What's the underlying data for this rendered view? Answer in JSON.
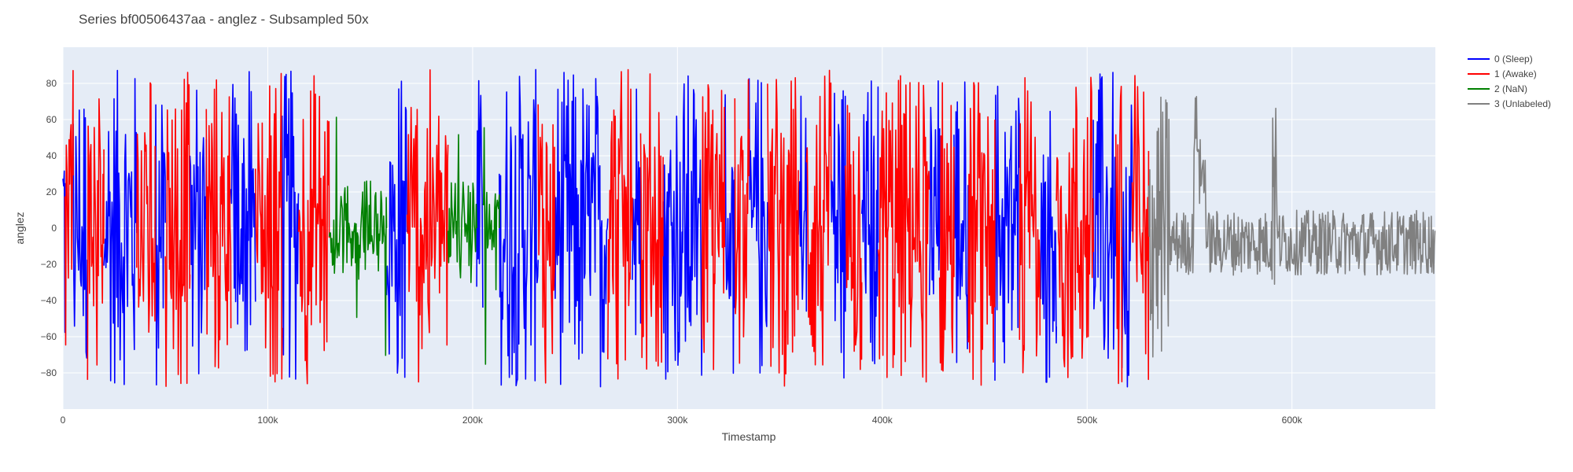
{
  "chart_data": {
    "type": "line",
    "title": "Series bf00506437aa - anglez - Subsampled 50x",
    "xlabel": "Timestamp",
    "ylabel": "anglez",
    "xlim": [
      0,
      670000
    ],
    "ylim": [
      -100,
      100
    ],
    "x_ticks": [
      {
        "value": 0,
        "label": "0"
      },
      {
        "value": 100000,
        "label": "100k"
      },
      {
        "value": 200000,
        "label": "200k"
      },
      {
        "value": 300000,
        "label": "300k"
      },
      {
        "value": 400000,
        "label": "400k"
      },
      {
        "value": 500000,
        "label": "500k"
      },
      {
        "value": 600000,
        "label": "600k"
      }
    ],
    "y_ticks": [
      {
        "value": 80,
        "label": "80"
      },
      {
        "value": 60,
        "label": "60"
      },
      {
        "value": 40,
        "label": "40"
      },
      {
        "value": 20,
        "label": "20"
      },
      {
        "value": 0,
        "label": "0"
      },
      {
        "value": -20,
        "label": "−20"
      },
      {
        "value": -40,
        "label": "−40"
      },
      {
        "value": -60,
        "label": "−60"
      },
      {
        "value": -80,
        "label": "−80"
      }
    ],
    "grid": true,
    "legend_position": "top-right",
    "plot_background": "#E5ECF6",
    "series": [
      {
        "name": "0 (Sleep)",
        "color": "#0000FF",
        "segments": [
          [
            0,
            1000
          ],
          [
            5000,
            12000
          ],
          [
            20000,
            36000
          ],
          [
            45000,
            50000
          ],
          [
            62000,
            70000
          ],
          [
            82000,
            94000
          ],
          [
            107000,
            115000
          ],
          [
            158000,
            168000
          ],
          [
            202000,
            205000
          ],
          [
            213000,
            232000
          ],
          [
            240000,
            266000
          ],
          [
            278000,
            282000
          ],
          [
            293000,
            312000
          ],
          [
            323000,
            328000
          ],
          [
            335000,
            344000
          ],
          [
            359000,
            363000
          ],
          [
            375000,
            382000
          ],
          [
            390000,
            398000
          ],
          [
            423000,
            428000
          ],
          [
            435000,
            442000
          ],
          [
            455000,
            467000
          ],
          [
            477000,
            485000
          ],
          [
            503000,
            514000
          ],
          [
            517000,
            522000
          ]
        ]
      },
      {
        "name": "1 (Awake)",
        "color": "#FF0000",
        "segments": [
          [
            1000,
            5000
          ],
          [
            12000,
            20000
          ],
          [
            36000,
            45000
          ],
          [
            50000,
            62000
          ],
          [
            70000,
            82000
          ],
          [
            94000,
            107000
          ],
          [
            115000,
            130000
          ],
          [
            168000,
            188000
          ],
          [
            232000,
            240000
          ],
          [
            266000,
            278000
          ],
          [
            282000,
            293000
          ],
          [
            312000,
            323000
          ],
          [
            328000,
            335000
          ],
          [
            344000,
            359000
          ],
          [
            363000,
            375000
          ],
          [
            382000,
            390000
          ],
          [
            398000,
            423000
          ],
          [
            428000,
            435000
          ],
          [
            442000,
            455000
          ],
          [
            467000,
            477000
          ],
          [
            485000,
            503000
          ],
          [
            514000,
            517000
          ],
          [
            522000,
            530000
          ]
        ]
      },
      {
        "name": "2 (NaN)",
        "color": "#008000",
        "segments": [
          [
            130000,
            158000
          ],
          [
            188000,
            202000
          ],
          [
            205000,
            213000
          ]
        ]
      },
      {
        "name": "3 (Unlabeled)",
        "color": "#808080",
        "segments": [
          [
            530000,
            670000
          ]
        ]
      }
    ]
  }
}
